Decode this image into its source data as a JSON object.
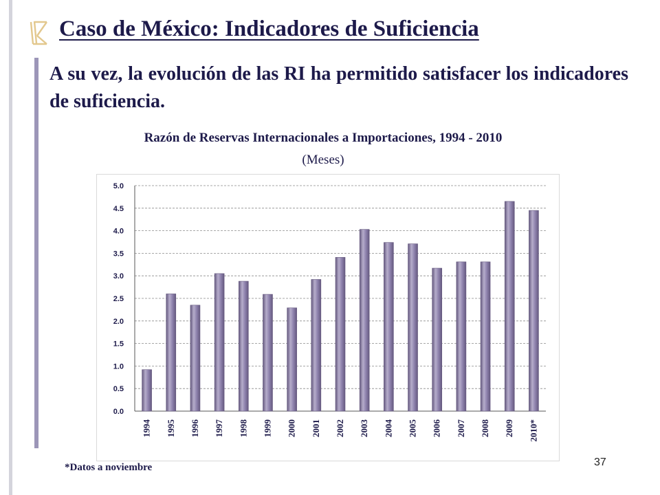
{
  "slide": {
    "title": "Caso de México: Indicadores de Suficiencia",
    "body": "A su vez, la evolución de las RI ha permitido satisfacer los indicadores de suficiencia.",
    "footnote": "*Datos a noviembre",
    "page_number": "37"
  },
  "colors": {
    "text": "#1d1a4a",
    "bar": "#8e82ad",
    "bar_light": "#b6adcb",
    "bar_dark": "#65597f",
    "accent_bar": "#9c96b8",
    "left_rule": "#d4d4dc"
  },
  "icons": {
    "bullet": "pen-bullet-icon"
  },
  "chart_data": {
    "type": "bar",
    "title": "Razón de Reservas Internacionales a Importaciones, 1994 - 2010",
    "subtitle": "(Meses)",
    "xlabel": "",
    "ylabel": "",
    "categories": [
      "1994",
      "1995",
      "1996",
      "1997",
      "1998",
      "1999",
      "2000",
      "2001",
      "2002",
      "2003",
      "2004",
      "2005",
      "2006",
      "2007",
      "2008",
      "2009",
      "2010*"
    ],
    "values": [
      0.92,
      2.6,
      2.35,
      3.05,
      2.88,
      2.59,
      2.29,
      2.92,
      3.41,
      4.03,
      3.74,
      3.71,
      3.17,
      3.31,
      3.31,
      4.65,
      4.45
    ],
    "ylim": [
      0,
      5
    ],
    "yticks": [
      "0.0",
      "0.5",
      "1.0",
      "1.5",
      "2.0",
      "2.5",
      "3.0",
      "3.5",
      "4.0",
      "4.5",
      "5.0"
    ],
    "grid": true,
    "legend": "none"
  }
}
